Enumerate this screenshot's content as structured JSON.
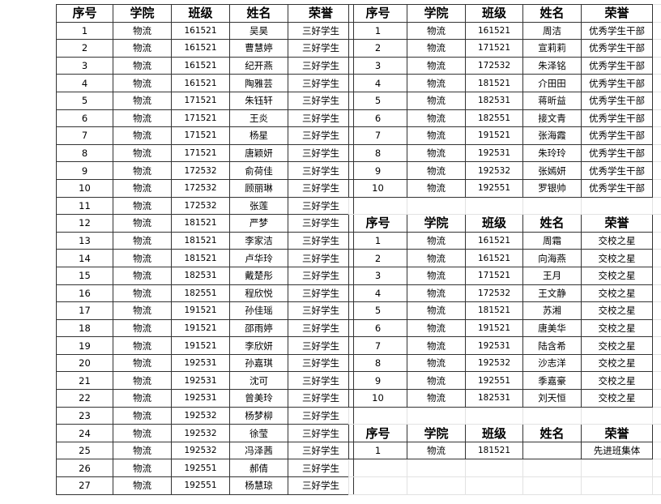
{
  "headers": [
    "序号",
    "学院",
    "班级",
    "姓名",
    "荣誉"
  ],
  "sanhao": {
    "rows": [
      [
        "1",
        "物流",
        "161521",
        "吴昊",
        "三好学生"
      ],
      [
        "2",
        "物流",
        "161521",
        "曹慧婷",
        "三好学生"
      ],
      [
        "3",
        "物流",
        "161521",
        "纪开燕",
        "三好学生"
      ],
      [
        "4",
        "物流",
        "161521",
        "陶雅芸",
        "三好学生"
      ],
      [
        "5",
        "物流",
        "171521",
        "朱钰轩",
        "三好学生"
      ],
      [
        "6",
        "物流",
        "171521",
        "王炎",
        "三好学生"
      ],
      [
        "7",
        "物流",
        "171521",
        "杨星",
        "三好学生"
      ],
      [
        "8",
        "物流",
        "171521",
        "唐颖妍",
        "三好学生"
      ],
      [
        "9",
        "物流",
        "172532",
        "俞荷佳",
        "三好学生"
      ],
      [
        "10",
        "物流",
        "172532",
        "顾丽琳",
        "三好学生"
      ],
      [
        "11",
        "物流",
        "172532",
        "张莲",
        "三好学生"
      ],
      [
        "12",
        "物流",
        "181521",
        "严梦",
        "三好学生"
      ],
      [
        "13",
        "物流",
        "181521",
        "李家洁",
        "三好学生"
      ],
      [
        "14",
        "物流",
        "181521",
        "卢华玲",
        "三好学生"
      ],
      [
        "15",
        "物流",
        "182531",
        "戴楚彤",
        "三好学生"
      ],
      [
        "16",
        "物流",
        "182551",
        "程欣悦",
        "三好学生"
      ],
      [
        "17",
        "物流",
        "191521",
        "孙佳瑶",
        "三好学生"
      ],
      [
        "18",
        "物流",
        "191521",
        "邵雨婷",
        "三好学生"
      ],
      [
        "19",
        "物流",
        "191521",
        "李欣妍",
        "三好学生"
      ],
      [
        "20",
        "物流",
        "192531",
        "孙嘉琪",
        "三好学生"
      ],
      [
        "21",
        "物流",
        "192531",
        "沈可",
        "三好学生"
      ],
      [
        "22",
        "物流",
        "192531",
        "曾美玲",
        "三好学生"
      ],
      [
        "23",
        "物流",
        "192532",
        "杨梦柳",
        "三好学生"
      ],
      [
        "24",
        "物流",
        "192532",
        "徐莹",
        "三好学生"
      ],
      [
        "25",
        "物流",
        "192532",
        "冯泽茜",
        "三好学生"
      ],
      [
        "26",
        "物流",
        "192551",
        "郝倩",
        "三好学生"
      ],
      [
        "27",
        "物流",
        "192551",
        "杨慧琼",
        "三好学生"
      ]
    ]
  },
  "ganbu": {
    "rows": [
      [
        "1",
        "物流",
        "161521",
        "周洁",
        "优秀学生干部"
      ],
      [
        "2",
        "物流",
        "171521",
        "宣莉莉",
        "优秀学生干部"
      ],
      [
        "3",
        "物流",
        "172532",
        "朱泽铭",
        "优秀学生干部"
      ],
      [
        "4",
        "物流",
        "181521",
        "介田田",
        "优秀学生干部"
      ],
      [
        "5",
        "物流",
        "182531",
        "蒋昕益",
        "优秀学生干部"
      ],
      [
        "6",
        "物流",
        "182551",
        "接文青",
        "优秀学生干部"
      ],
      [
        "7",
        "物流",
        "191521",
        "张海霞",
        "优秀学生干部"
      ],
      [
        "8",
        "物流",
        "192531",
        "朱玲玲",
        "优秀学生干部"
      ],
      [
        "9",
        "物流",
        "192532",
        "张嫣妍",
        "优秀学生干部"
      ],
      [
        "10",
        "物流",
        "192551",
        "罗银帅",
        "优秀学生干部"
      ]
    ]
  },
  "jiaoxiao": {
    "rows": [
      [
        "1",
        "物流",
        "161521",
        "周霜",
        "交校之星"
      ],
      [
        "2",
        "物流",
        "161521",
        "向海燕",
        "交校之星"
      ],
      [
        "3",
        "物流",
        "171521",
        "王月",
        "交校之星"
      ],
      [
        "4",
        "物流",
        "172532",
        "王文静",
        "交校之星"
      ],
      [
        "5",
        "物流",
        "181521",
        "苏湘",
        "交校之星"
      ],
      [
        "6",
        "物流",
        "191521",
        "唐美华",
        "交校之星"
      ],
      [
        "7",
        "物流",
        "192531",
        "陆含希",
        "交校之星"
      ],
      [
        "8",
        "物流",
        "192532",
        "沙志洋",
        "交校之星"
      ],
      [
        "9",
        "物流",
        "192551",
        "季嘉豪",
        "交校之星"
      ],
      [
        "10",
        "物流",
        "182531",
        "刘天恒",
        "交校之星"
      ]
    ]
  },
  "jiti": {
    "rows": [
      [
        "1",
        "物流",
        "181521",
        "",
        "先进班集体"
      ]
    ]
  },
  "colors": {
    "border": "#333333",
    "gridline": "#e2e2e2"
  }
}
